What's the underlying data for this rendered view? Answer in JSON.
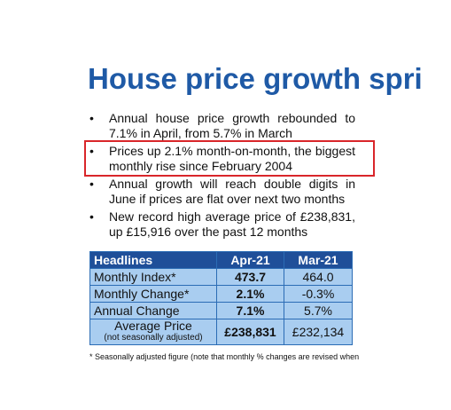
{
  "title": "House price growth spri",
  "bullets": [
    "Annual house price growth rebounded to 7.1% in April, from 5.7% in March",
    "Prices up 2.1% month-on-month, the biggest monthly rise since February 2004",
    "Annual growth will reach double digits in June if prices are flat over next two months",
    "New record high average price of £238,831, up £15,916 over the past 12 months"
  ],
  "table": {
    "headers": [
      "Headlines",
      "Apr-21",
      "Mar-21"
    ],
    "rows": [
      {
        "label": "Monthly Index*",
        "apr": "473.7",
        "mar": "464.0"
      },
      {
        "label": "Monthly Change*",
        "apr": "2.1%",
        "mar": "-0.3%"
      },
      {
        "label": "Annual Change",
        "apr": "7.1%",
        "mar": "5.7%"
      },
      {
        "label": "Average Price",
        "sublabel": "(not seasonally adjusted)",
        "apr": "£238,831",
        "mar": "£232,134"
      }
    ]
  },
  "footnote": "* Seasonally adjusted figure (note that monthly % changes are revised when",
  "colors": {
    "title": "#1f5aa6",
    "header_bg": "#1f4f99",
    "cell_bg": "#a9cdf0",
    "highlight": "#d9262a"
  }
}
